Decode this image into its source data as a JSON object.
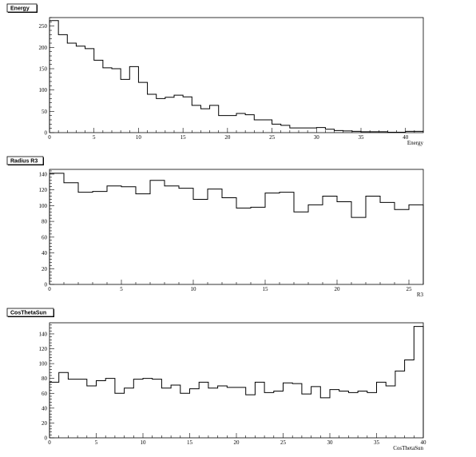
{
  "chart_data": [
    {
      "type": "bar",
      "title": "Energy",
      "xlabel": "Energy",
      "ylabel": "",
      "xlim": [
        0,
        42
      ],
      "ylim": [
        0,
        270
      ],
      "bin_width": 1,
      "xticks": [
        0,
        5,
        10,
        15,
        20,
        25,
        30,
        35,
        40
      ],
      "yticks": [
        0,
        50,
        100,
        150,
        200,
        250
      ],
      "values": [
        263,
        230,
        210,
        203,
        197,
        170,
        152,
        150,
        125,
        155,
        118,
        90,
        80,
        83,
        88,
        84,
        64,
        56,
        64,
        40,
        40,
        45,
        42,
        30,
        30,
        20,
        17,
        11,
        11,
        11,
        12,
        8,
        5,
        4,
        3,
        2,
        2,
        2,
        1,
        1,
        3,
        3
      ]
    },
    {
      "type": "bar",
      "title": "Radius R3",
      "xlabel": "R3",
      "ylabel": "",
      "xlim": [
        0,
        26
      ],
      "ylim": [
        0,
        146
      ],
      "bin_width": 1,
      "xticks": [
        0,
        5,
        10,
        15,
        20,
        25
      ],
      "yticks": [
        0,
        20,
        40,
        60,
        80,
        100,
        120,
        140
      ],
      "values": [
        141,
        129,
        117,
        118,
        125,
        124,
        115,
        132,
        125,
        122,
        108,
        121,
        110,
        97,
        98,
        116,
        117,
        92,
        101,
        112,
        105,
        85,
        112,
        104,
        95,
        101
      ]
    },
    {
      "type": "bar",
      "title": "CosThetaSun",
      "xlabel": "CosThetaSun",
      "ylabel": "",
      "xlim": [
        0,
        40
      ],
      "ylim": [
        0,
        155
      ],
      "bin_width": 1,
      "xticks": [
        0,
        5,
        10,
        15,
        20,
        25,
        30,
        35,
        40
      ],
      "yticks": [
        0,
        20,
        40,
        60,
        80,
        100,
        120,
        140
      ],
      "values": [
        75,
        88,
        79,
        79,
        70,
        77,
        80,
        60,
        67,
        79,
        80,
        79,
        67,
        71,
        60,
        66,
        75,
        67,
        70,
        68,
        68,
        58,
        75,
        61,
        63,
        74,
        73,
        59,
        69,
        54,
        65,
        63,
        61,
        63,
        61,
        75,
        70,
        90,
        105,
        150
      ]
    }
  ]
}
